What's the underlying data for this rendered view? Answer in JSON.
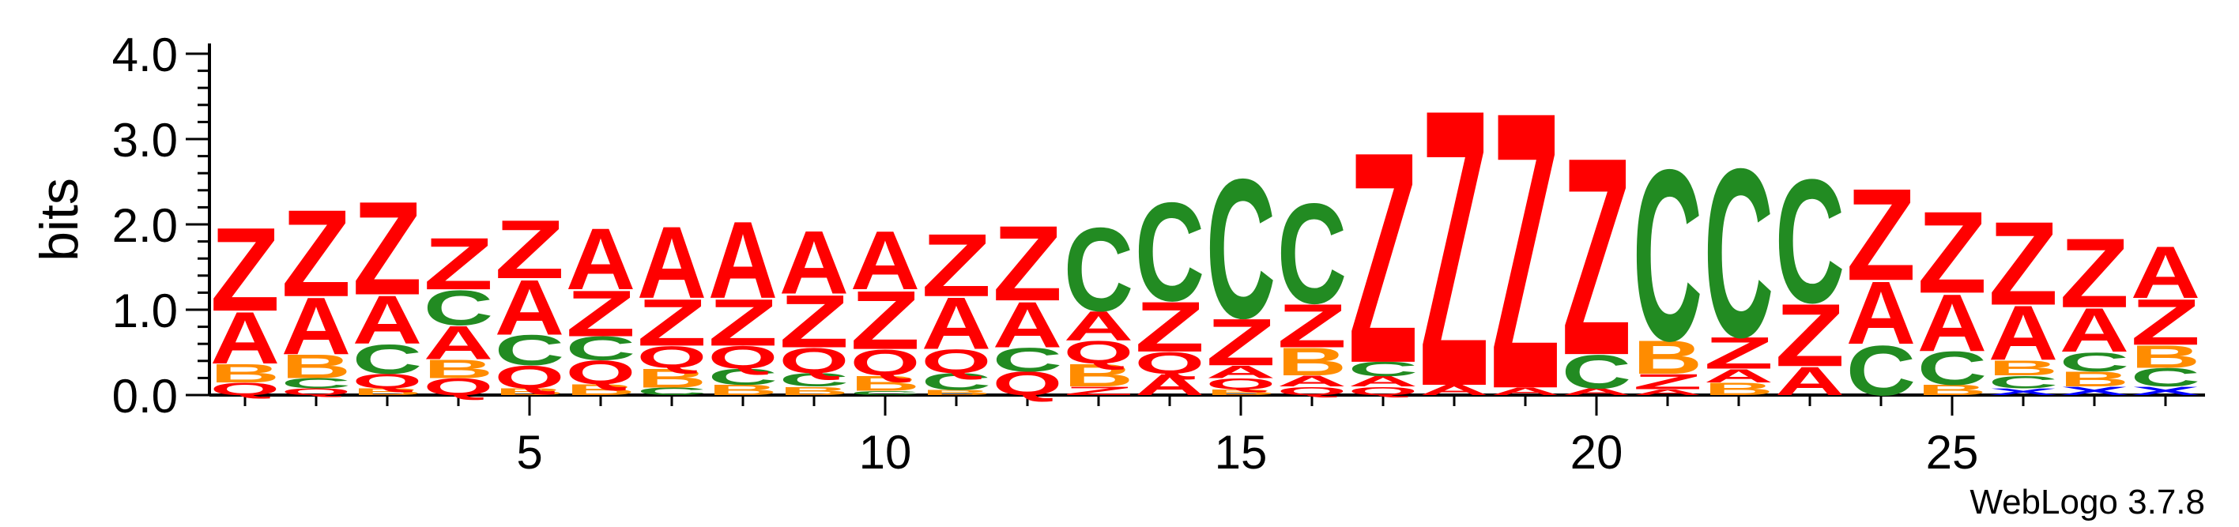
{
  "chart_data": {
    "type": "sequence-logo",
    "ylabel": "bits",
    "ylim": [
      0,
      4.0
    ],
    "y_ticks": [
      "0.0",
      "1.0",
      "2.0",
      "3.0",
      "4.0"
    ],
    "x_ticks": [
      5,
      10,
      15,
      20,
      25
    ],
    "footer": "WebLogo 3.7.8",
    "colors": {
      "Z": "#ff0000",
      "A": "#ff0000",
      "Q": "#ff0000",
      "C": "#228b22",
      "B": "#ff8c00",
      "X": "#0000ff"
    },
    "positions": [
      {
        "pos": 1,
        "stack": [
          [
            "Z",
            1.0
          ],
          [
            "A",
            0.62
          ],
          [
            "B",
            0.22
          ],
          [
            "Q",
            0.15
          ]
        ]
      },
      {
        "pos": 2,
        "stack": [
          [
            "Z",
            1.04
          ],
          [
            "A",
            0.68
          ],
          [
            "B",
            0.28
          ],
          [
            "C",
            0.12
          ],
          [
            "Q",
            0.08
          ]
        ]
      },
      {
        "pos": 3,
        "stack": [
          [
            "Z",
            1.12
          ],
          [
            "A",
            0.58
          ],
          [
            "C",
            0.35
          ],
          [
            "Q",
            0.17
          ],
          [
            "B",
            0.08
          ]
        ]
      },
      {
        "pos": 4,
        "stack": [
          [
            "Z",
            0.62
          ],
          [
            "A",
            0.4
          ],
          [
            "C",
            0.42
          ],
          [
            "B",
            0.22
          ],
          [
            "Q",
            0.2
          ]
        ]
      },
      {
        "pos": 5,
        "stack": [
          [
            "Z",
            0.7
          ],
          [
            "A",
            0.66
          ],
          [
            "C",
            0.36
          ],
          [
            "Q",
            0.27
          ],
          [
            "B",
            0.08
          ]
        ]
      },
      {
        "pos": 6,
        "stack": [
          [
            "A",
            0.73
          ],
          [
            "Z",
            0.55
          ],
          [
            "Q",
            0.28
          ],
          [
            "C",
            0.28
          ],
          [
            "B",
            0.13
          ]
        ]
      },
      {
        "pos": 7,
        "stack": [
          [
            "A",
            0.86
          ],
          [
            "Z",
            0.56
          ],
          [
            "Q",
            0.26
          ],
          [
            "B",
            0.23
          ],
          [
            "C",
            0.09
          ]
        ]
      },
      {
        "pos": 8,
        "stack": [
          [
            "A",
            0.92
          ],
          [
            "Z",
            0.56
          ],
          [
            "Q",
            0.27
          ],
          [
            "C",
            0.19
          ],
          [
            "B",
            0.12
          ]
        ]
      },
      {
        "pos": 9,
        "stack": [
          [
            "A",
            0.76
          ],
          [
            "Z",
            0.63
          ],
          [
            "Q",
            0.3
          ],
          [
            "C",
            0.16
          ],
          [
            "B",
            0.1
          ]
        ]
      },
      {
        "pos": 10,
        "stack": [
          [
            "Z",
            0.7
          ],
          [
            "A",
            0.7
          ],
          [
            "Q",
            0.31
          ],
          [
            "B",
            0.18
          ],
          [
            "C",
            0.05
          ]
        ]
      },
      {
        "pos": 11,
        "stack": [
          [
            "Z",
            0.75
          ],
          [
            "A",
            0.62
          ],
          [
            "Q",
            0.28
          ],
          [
            "C",
            0.2
          ],
          [
            "B",
            0.06
          ]
        ]
      },
      {
        "pos": 12,
        "stack": [
          [
            "Z",
            0.9
          ],
          [
            "A",
            0.55
          ],
          [
            "Q",
            0.28
          ],
          [
            "C",
            0.28
          ]
        ]
      },
      {
        "pos": 13,
        "stack": [
          [
            "C",
            1.0
          ],
          [
            "A",
            0.35
          ],
          [
            "B",
            0.27
          ],
          [
            "Q",
            0.27
          ],
          [
            "Z",
            0.1
          ]
        ]
      },
      {
        "pos": 14,
        "stack": [
          [
            "C",
            1.18
          ],
          [
            "Z",
            0.6
          ],
          [
            "Q",
            0.26
          ],
          [
            "A",
            0.25
          ]
        ]
      },
      {
        "pos": 15,
        "stack": [
          [
            "C",
            1.67
          ],
          [
            "Z",
            0.56
          ],
          [
            "A",
            0.15
          ],
          [
            "Q",
            0.13
          ],
          [
            "B",
            0.07
          ]
        ]
      },
      {
        "pos": 16,
        "stack": [
          [
            "C",
            1.2
          ],
          [
            "Z",
            0.52
          ],
          [
            "B",
            0.33
          ],
          [
            "A",
            0.13
          ],
          [
            "Q",
            0.1
          ]
        ]
      },
      {
        "pos": 17,
        "stack": [
          [
            "Z",
            2.53
          ],
          [
            "C",
            0.17
          ],
          [
            "A",
            0.12
          ],
          [
            "Q",
            0.1
          ]
        ]
      },
      {
        "pos": 18,
        "stack": [
          [
            "Z",
            3.32
          ],
          [
            "A",
            0.12
          ]
        ]
      },
      {
        "pos": 19,
        "stack": [
          [
            "Z",
            3.32
          ],
          [
            "A",
            0.09
          ]
        ]
      },
      {
        "pos": 20,
        "stack": [
          [
            "Z",
            2.37
          ],
          [
            "C",
            0.4
          ],
          [
            "A",
            0.08
          ]
        ]
      },
      {
        "pos": 21,
        "stack": [
          [
            "C",
            2.05
          ],
          [
            "B",
            0.4
          ],
          [
            "Z",
            0.18
          ],
          [
            "A",
            0.07
          ]
        ]
      },
      {
        "pos": 22,
        "stack": [
          [
            "C",
            2.02
          ],
          [
            "Z",
            0.38
          ],
          [
            "A",
            0.16
          ],
          [
            "B",
            0.15
          ]
        ]
      },
      {
        "pos": 23,
        "stack": [
          [
            "C",
            1.48
          ],
          [
            "Z",
            0.75
          ],
          [
            "A",
            0.34
          ]
        ]
      },
      {
        "pos": 24,
        "stack": [
          [
            "Z",
            1.1
          ],
          [
            "A",
            0.75
          ],
          [
            "C",
            0.6
          ]
        ]
      },
      {
        "pos": 25,
        "stack": [
          [
            "Z",
            0.98
          ],
          [
            "A",
            0.68
          ],
          [
            "C",
            0.4
          ],
          [
            "B",
            0.12
          ]
        ]
      },
      {
        "pos": 26,
        "stack": [
          [
            "Z",
            1.0
          ],
          [
            "A",
            0.65
          ],
          [
            "B",
            0.18
          ],
          [
            "C",
            0.15
          ],
          [
            "X",
            0.08
          ]
        ]
      },
      {
        "pos": 27,
        "stack": [
          [
            "Z",
            0.83
          ],
          [
            "A",
            0.52
          ],
          [
            "C",
            0.23
          ],
          [
            "B",
            0.18
          ],
          [
            "X",
            0.1
          ]
        ]
      },
      {
        "pos": 28,
        "stack": [
          [
            "A",
            0.62
          ],
          [
            "Z",
            0.55
          ],
          [
            "B",
            0.27
          ],
          [
            "C",
            0.22
          ],
          [
            "X",
            0.1
          ]
        ]
      }
    ]
  }
}
